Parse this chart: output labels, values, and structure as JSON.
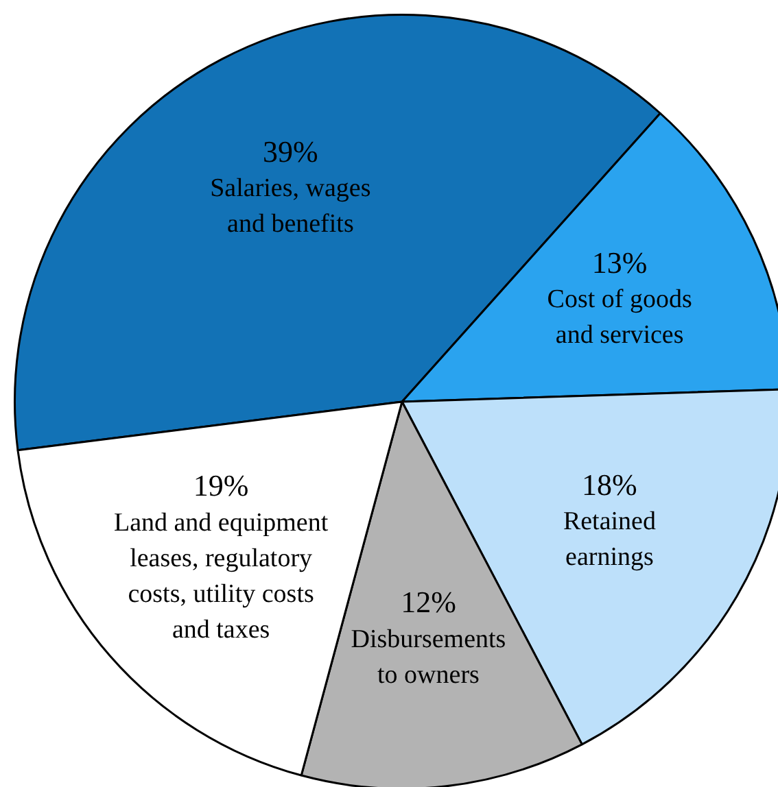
{
  "chart_data": {
    "type": "pie",
    "categories": [
      "Salaries, wages\nand benefits",
      "Cost of goods\nand services",
      "Retained\nearnings",
      "Disbursements\nto owners",
      "Land and equipment\nleases, regulatory\ncosts, utility costs\nand taxes"
    ],
    "values": [
      39,
      13,
      18,
      12,
      19
    ],
    "colors": [
      "#1272b6",
      "#2aa3ef",
      "#bde0fa",
      "#b3b3b3",
      "#ffffff"
    ],
    "value_labels": [
      "39%",
      "13%",
      "18%",
      "12%",
      "19%"
    ],
    "legend": false
  }
}
